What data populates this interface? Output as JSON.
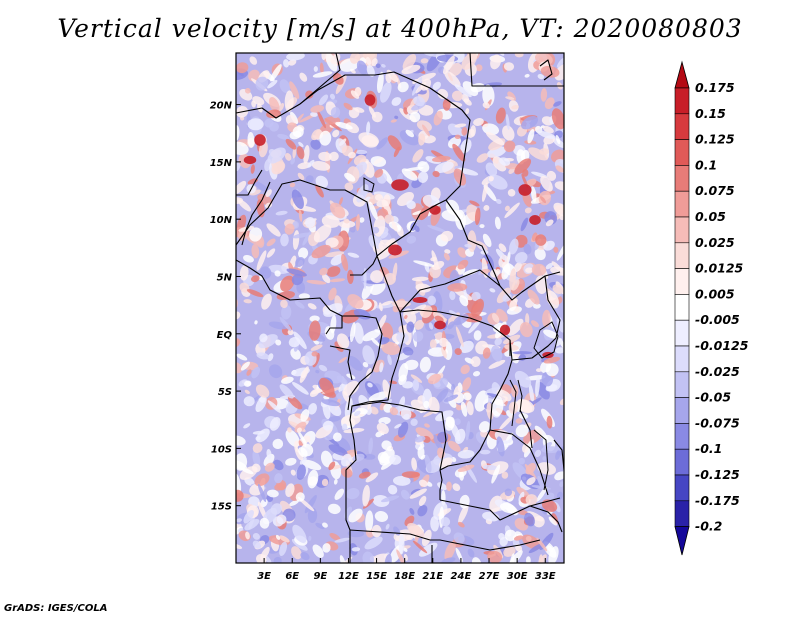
{
  "title": "Vertical velocity [m/s] at 400hPa, VT: 2020080803",
  "credit": "GrADS: IGES/COLA",
  "map": {
    "lat_labels": [
      "20N",
      "15N",
      "10N",
      "5N",
      "EQ",
      "5S",
      "10S",
      "15S"
    ],
    "lon_labels": [
      "3E",
      "6E",
      "9E",
      "12E",
      "15E",
      "18E",
      "21E",
      "24E",
      "27E",
      "30E",
      "33E"
    ],
    "lat_values": [
      20,
      15,
      10,
      5,
      0,
      -5,
      -10,
      -15
    ],
    "lon_values": [
      3,
      6,
      9,
      12,
      15,
      18,
      21,
      24,
      27,
      30,
      33
    ],
    "lat_range": [
      -20,
      24.5
    ],
    "lon_range": [
      0,
      35
    ]
  },
  "colorbar": {
    "labels": [
      "0.175",
      "0.15",
      "0.125",
      "0.1",
      "0.075",
      "0.05",
      "0.025",
      "0.0125",
      "0.005",
      "-0.005",
      "-0.0125",
      "-0.025",
      "-0.05",
      "-0.075",
      "-0.1",
      "-0.125",
      "-0.175",
      "-0.2"
    ],
    "colors": [
      "#b40a14",
      "#c81e28",
      "#d73a3e",
      "#e05a58",
      "#e87c78",
      "#f09c98",
      "#f6bcb8",
      "#fadcd8",
      "#fff0ee",
      "#ffffff",
      "#eeeeff",
      "#dcdcfc",
      "#c2c2f4",
      "#a6a6ec",
      "#8a8ae4",
      "#6c6cd8",
      "#4646c4",
      "#2a22a8",
      "#14089a"
    ]
  }
}
